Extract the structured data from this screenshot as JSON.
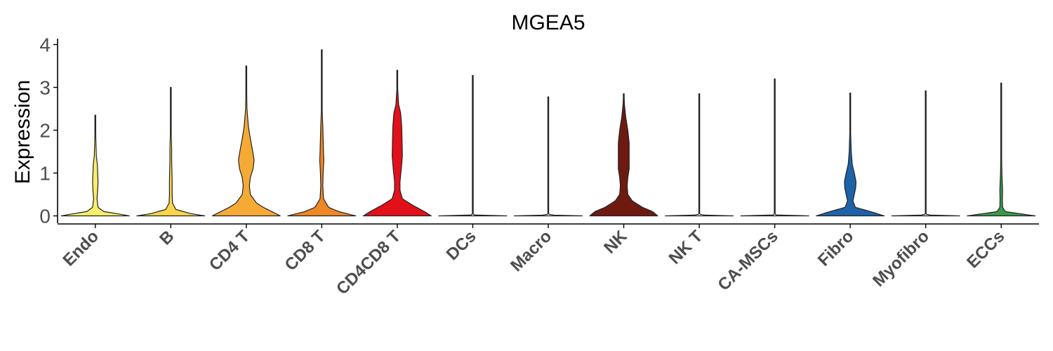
{
  "chart_data": {
    "type": "violin",
    "title": "MGEA5",
    "xlabel": "",
    "ylabel": "Expression",
    "ylim": [
      -0.2,
      4.05
    ],
    "yticks": [
      0,
      1,
      2,
      3,
      4
    ],
    "grid": false,
    "legend": "none",
    "categories": [
      "Endo",
      "B",
      "CD4 T",
      "CD8 T",
      "CD4CD8 T",
      "DCs",
      "Macro",
      "NK",
      "NK T",
      "CA-MSCs",
      "Fibro",
      "Myofibro",
      "ECCs"
    ],
    "series": [
      {
        "category": "Endo",
        "color": "#F6EE6B",
        "max": 2.35,
        "density": [
          [
            0,
            1.0
          ],
          [
            0.05,
            0.65
          ],
          [
            0.1,
            0.25
          ],
          [
            0.2,
            0.08
          ],
          [
            0.4,
            0.05
          ],
          [
            0.6,
            0.07
          ],
          [
            0.8,
            0.08
          ],
          [
            1.0,
            0.07
          ],
          [
            1.2,
            0.06
          ],
          [
            1.4,
            0.03
          ],
          [
            1.8,
            0.015
          ],
          [
            2.35,
            0.008
          ]
        ]
      },
      {
        "category": "B",
        "color": "#F8D54A",
        "max": 3.0,
        "density": [
          [
            0,
            1.0
          ],
          [
            0.05,
            0.6
          ],
          [
            0.15,
            0.15
          ],
          [
            0.3,
            0.05
          ],
          [
            0.5,
            0.04
          ],
          [
            0.8,
            0.04
          ],
          [
            1.0,
            0.035
          ],
          [
            1.3,
            0.025
          ],
          [
            1.6,
            0.025
          ],
          [
            2.0,
            0.01
          ],
          [
            3.0,
            0.006
          ]
        ]
      },
      {
        "category": "CD4 T",
        "color": "#F6AA36",
        "max": 3.5,
        "density": [
          [
            0,
            1.0
          ],
          [
            0.1,
            0.75
          ],
          [
            0.2,
            0.5
          ],
          [
            0.3,
            0.3
          ],
          [
            0.5,
            0.12
          ],
          [
            0.7,
            0.09
          ],
          [
            0.9,
            0.12
          ],
          [
            1.1,
            0.2
          ],
          [
            1.3,
            0.23
          ],
          [
            1.5,
            0.19
          ],
          [
            1.8,
            0.12
          ],
          [
            2.1,
            0.06
          ],
          [
            2.5,
            0.02
          ],
          [
            3.0,
            0.01
          ],
          [
            3.5,
            0.006
          ]
        ]
      },
      {
        "category": "CD8 T",
        "color": "#EE8725",
        "max": 3.88,
        "density": [
          [
            0,
            1.0
          ],
          [
            0.1,
            0.5
          ],
          [
            0.2,
            0.2
          ],
          [
            0.4,
            0.05
          ],
          [
            0.7,
            0.03
          ],
          [
            1.0,
            0.04
          ],
          [
            1.3,
            0.06
          ],
          [
            1.5,
            0.05
          ],
          [
            1.8,
            0.04
          ],
          [
            2.1,
            0.03
          ],
          [
            2.5,
            0.01
          ],
          [
            3.0,
            0.006
          ],
          [
            3.88,
            0.005
          ]
        ]
      },
      {
        "category": "CD4CD8 T",
        "color": "#E2101A",
        "max": 3.4,
        "density": [
          [
            0,
            1.0
          ],
          [
            0.1,
            0.8
          ],
          [
            0.25,
            0.45
          ],
          [
            0.4,
            0.15
          ],
          [
            0.6,
            0.08
          ],
          [
            0.8,
            0.08
          ],
          [
            1.1,
            0.12
          ],
          [
            1.4,
            0.15
          ],
          [
            1.8,
            0.14
          ],
          [
            2.1,
            0.13
          ],
          [
            2.4,
            0.1
          ],
          [
            2.6,
            0.04
          ],
          [
            3.0,
            0.01
          ],
          [
            3.4,
            0.006
          ]
        ]
      },
      {
        "category": "DCs",
        "color": "#F0F0F0",
        "max": 3.28,
        "density": [
          [
            0,
            1.0
          ],
          [
            0.02,
            0.05
          ],
          [
            0.05,
            0.005
          ],
          [
            3.28,
            0.005
          ]
        ]
      },
      {
        "category": "Macro",
        "color": "#F0F0F0",
        "max": 2.78,
        "density": [
          [
            0,
            1.0
          ],
          [
            0.02,
            0.05
          ],
          [
            0.05,
            0.005
          ],
          [
            2.78,
            0.005
          ]
        ]
      },
      {
        "category": "NK",
        "color": "#6E1A10",
        "max": 2.85,
        "density": [
          [
            0,
            1.0
          ],
          [
            0.1,
            0.85
          ],
          [
            0.2,
            0.55
          ],
          [
            0.35,
            0.25
          ],
          [
            0.5,
            0.12
          ],
          [
            0.7,
            0.1
          ],
          [
            0.9,
            0.12
          ],
          [
            1.1,
            0.16
          ],
          [
            1.4,
            0.16
          ],
          [
            1.7,
            0.16
          ],
          [
            2.0,
            0.12
          ],
          [
            2.3,
            0.06
          ],
          [
            2.6,
            0.02
          ],
          [
            2.85,
            0.008
          ]
        ]
      },
      {
        "category": "NK T",
        "color": "#F0F0F0",
        "max": 2.85,
        "density": [
          [
            0,
            1.0
          ],
          [
            0.02,
            0.05
          ],
          [
            0.05,
            0.005
          ],
          [
            2.85,
            0.005
          ]
        ]
      },
      {
        "category": "CA-MSCs",
        "color": "#F0F0F0",
        "max": 3.2,
        "density": [
          [
            0,
            1.0
          ],
          [
            0.02,
            0.05
          ],
          [
            0.05,
            0.005
          ],
          [
            3.2,
            0.005
          ]
        ]
      },
      {
        "category": "Fibro",
        "color": "#1E62A8",
        "max": 2.87,
        "density": [
          [
            0,
            1.0
          ],
          [
            0.1,
            0.6
          ],
          [
            0.2,
            0.15
          ],
          [
            0.35,
            0.08
          ],
          [
            0.5,
            0.12
          ],
          [
            0.65,
            0.16
          ],
          [
            0.8,
            0.17
          ],
          [
            1.0,
            0.12
          ],
          [
            1.2,
            0.06
          ],
          [
            1.5,
            0.03
          ],
          [
            2.0,
            0.01
          ],
          [
            2.87,
            0.006
          ]
        ]
      },
      {
        "category": "Myofibro",
        "color": "#F0F0F0",
        "max": 2.92,
        "density": [
          [
            0,
            1.0
          ],
          [
            0.02,
            0.05
          ],
          [
            0.05,
            0.005
          ],
          [
            2.92,
            0.005
          ]
        ]
      },
      {
        "category": "ECCs",
        "color": "#3A9A4A",
        "max": 3.1,
        "density": [
          [
            0,
            1.0
          ],
          [
            0.05,
            0.55
          ],
          [
            0.1,
            0.12
          ],
          [
            0.2,
            0.04
          ],
          [
            0.4,
            0.035
          ],
          [
            0.6,
            0.04
          ],
          [
            0.8,
            0.03
          ],
          [
            1.0,
            0.02
          ],
          [
            1.5,
            0.01
          ],
          [
            3.1,
            0.005
          ]
        ]
      }
    ]
  }
}
